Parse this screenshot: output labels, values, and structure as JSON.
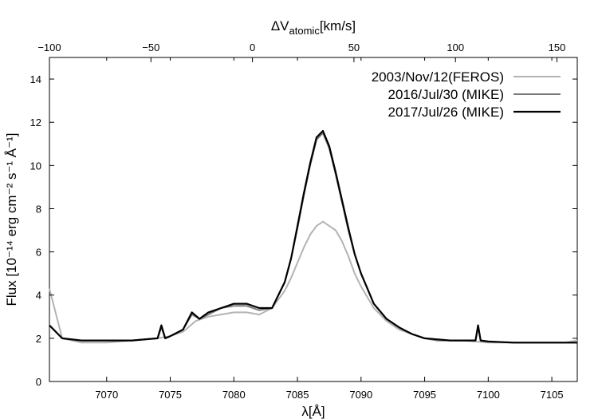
{
  "chart_data": {
    "type": "line",
    "title": "",
    "xlabel": "λ[Å]",
    "ylabel": "Flux [10⁻¹⁴ erg cm⁻² s⁻¹ Å⁻¹]",
    "x2label": "ΔV_atomic[km/s]",
    "xlim": [
      7065.5,
      7107.0
    ],
    "ylim": [
      0,
      15
    ],
    "x2lim": [
      -100,
      160
    ],
    "xticks": [
      7070,
      7075,
      7080,
      7085,
      7090,
      7095,
      7100,
      7105
    ],
    "yticks": [
      0,
      2,
      4,
      6,
      8,
      10,
      12,
      14
    ],
    "x2ticks": [
      -100,
      -50,
      0,
      50,
      100,
      150
    ],
    "grid": false,
    "legend_position": "top-right",
    "series": [
      {
        "name": "2003/Nov/12(FEROS)",
        "color": "#b3b3b3",
        "x": [
          7065.5,
          7066.5,
          7068,
          7070,
          7072,
          7074,
          7075,
          7076,
          7077,
          7078,
          7079,
          7080,
          7081,
          7082,
          7083,
          7084,
          7084.5,
          7085,
          7085.5,
          7086,
          7086.5,
          7087,
          7087.5,
          7088,
          7088.5,
          7089,
          7089.5,
          7090,
          7091,
          7092,
          7093,
          7094,
          7095,
          7096,
          7098,
          7100,
          7102,
          7104,
          7106,
          7107
        ],
        "y": [
          4.3,
          2.0,
          1.8,
          1.8,
          1.9,
          2.0,
          2.1,
          2.3,
          2.8,
          3.0,
          3.1,
          3.2,
          3.2,
          3.1,
          3.4,
          4.2,
          4.8,
          5.5,
          6.2,
          6.8,
          7.2,
          7.4,
          7.2,
          7.0,
          6.5,
          5.8,
          5.0,
          4.4,
          3.4,
          2.8,
          2.4,
          2.2,
          2.0,
          1.9,
          1.9,
          1.8,
          1.8,
          1.8,
          1.8,
          1.9
        ]
      },
      {
        "name": "2016/Jul/30 (MIKE)",
        "color": "#7a7a7a",
        "x": [
          7065.5,
          7066.5,
          7068,
          7070,
          7072,
          7074,
          7074.3,
          7074.6,
          7075,
          7076,
          7076.7,
          7077.3,
          7078,
          7079,
          7080,
          7081,
          7082,
          7083,
          7084,
          7084.5,
          7085,
          7085.5,
          7086,
          7086.5,
          7087,
          7087.5,
          7088,
          7088.5,
          7089,
          7089.5,
          7090,
          7090.5,
          7091,
          7092,
          7093,
          7094,
          7095,
          7096,
          7097,
          7098,
          7099,
          7099.2,
          7099.4,
          7100,
          7102,
          7104,
          7106,
          7107
        ],
        "y": [
          2.6,
          2.0,
          1.9,
          1.9,
          1.9,
          2.0,
          2.5,
          2.0,
          2.1,
          2.4,
          3.1,
          2.9,
          3.1,
          3.4,
          3.5,
          3.5,
          3.3,
          3.4,
          4.6,
          5.7,
          7.1,
          8.6,
          10.0,
          11.2,
          11.5,
          10.8,
          9.6,
          8.3,
          7.0,
          5.9,
          5.0,
          4.3,
          3.6,
          2.9,
          2.5,
          2.2,
          2.0,
          1.9,
          1.9,
          1.9,
          1.9,
          2.5,
          1.9,
          1.85,
          1.8,
          1.8,
          1.8,
          1.8
        ]
      },
      {
        "name": "2017/Jul/26 (MIKE)",
        "color": "#000000",
        "x": [
          7065.5,
          7066.5,
          7068,
          7070,
          7072,
          7074,
          7074.3,
          7074.6,
          7075,
          7076,
          7076.7,
          7077.3,
          7078,
          7079,
          7080,
          7081,
          7082,
          7083,
          7084,
          7084.5,
          7085,
          7085.5,
          7086,
          7086.5,
          7087,
          7087.5,
          7088,
          7088.5,
          7089,
          7089.5,
          7090,
          7090.5,
          7091,
          7092,
          7093,
          7094,
          7095,
          7096,
          7097,
          7098,
          7099,
          7099.2,
          7099.4,
          7100,
          7102,
          7104,
          7106,
          7107
        ],
        "y": [
          2.6,
          2.0,
          1.9,
          1.9,
          1.9,
          2.0,
          2.6,
          2.0,
          2.1,
          2.4,
          3.2,
          2.9,
          3.2,
          3.4,
          3.6,
          3.6,
          3.4,
          3.4,
          4.6,
          5.7,
          7.2,
          8.7,
          10.1,
          11.3,
          11.6,
          10.9,
          9.7,
          8.4,
          7.1,
          5.9,
          5.0,
          4.3,
          3.6,
          2.9,
          2.5,
          2.2,
          2.0,
          1.95,
          1.9,
          1.9,
          1.9,
          2.6,
          1.9,
          1.85,
          1.8,
          1.8,
          1.8,
          1.8
        ]
      }
    ]
  }
}
